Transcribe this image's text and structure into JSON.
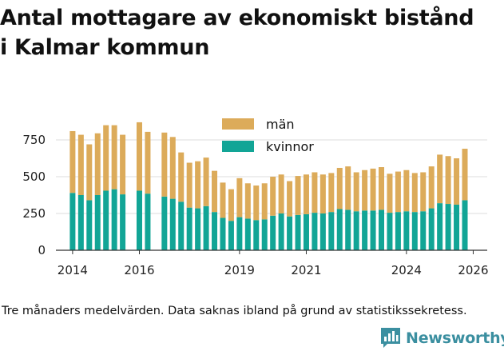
{
  "title_lines": [
    "Antal mottagare av ekonomiskt bistånd",
    "i Kalmar kommun"
  ],
  "footnote": "Tre månaders medelvärden. Data saknas ibland på grund av statistikssekretess.",
  "brand": {
    "name": "Newsworthy",
    "icon": "newsworthy-logo-icon",
    "color": "#3b8fa0"
  },
  "colors": {
    "man": "#dcab5a",
    "kvinnor": "#12a596",
    "grid": "#dddddd",
    "axis": "#333333"
  },
  "chart_data": {
    "type": "bar",
    "stacked": true,
    "title": "Antal mottagare av ekonomiskt bistånd i Kalmar kommun",
    "xlabel": "",
    "ylabel": "",
    "ylim": [
      0,
      850
    ],
    "yticks": [
      0,
      250,
      500,
      750
    ],
    "xtick_labels": [
      "2014",
      "2016",
      "2019",
      "2021",
      "2024",
      "2026"
    ],
    "xtick_positions": [
      2014.25,
      2016.25,
      2019.25,
      2021.25,
      2024.25,
      2026.25
    ],
    "x_range": [
      2013.75,
      2026.67
    ],
    "legend": {
      "position": "top-center",
      "entries": [
        "män",
        "kvinnor"
      ]
    },
    "x": [
      2014.25,
      2014.5,
      2014.75,
      2015.0,
      2015.25,
      2015.5,
      2015.75,
      2016.0,
      2016.25,
      2016.5,
      2016.75,
      2017.0,
      2017.25,
      2017.5,
      2017.75,
      2018.0,
      2018.25,
      2018.5,
      2018.75,
      2019.0,
      2019.25,
      2019.5,
      2019.75,
      2020.0,
      2020.25,
      2020.5,
      2020.75,
      2021.0,
      2021.25,
      2021.5,
      2021.75,
      2022.0,
      2022.25,
      2022.5,
      2022.75,
      2023.0,
      2023.25,
      2023.5,
      2023.75,
      2024.0,
      2024.25,
      2024.5,
      2024.75,
      2025.0,
      2025.25,
      2025.5,
      2025.75,
      2026.0,
      2026.25
    ],
    "series": [
      {
        "name": "kvinnor",
        "values": [
          390,
          375,
          340,
          375,
          405,
          415,
          380,
          null,
          405,
          385,
          null,
          365,
          350,
          330,
          290,
          285,
          300,
          260,
          220,
          200,
          225,
          215,
          205,
          210,
          235,
          250,
          230,
          240,
          245,
          255,
          250,
          260,
          280,
          275,
          265,
          270,
          270,
          275,
          255,
          260,
          265,
          260,
          265,
          285,
          320,
          315,
          310,
          340,
          null
        ]
      },
      {
        "name": "män",
        "values": [
          420,
          410,
          380,
          420,
          445,
          435,
          405,
          null,
          465,
          420,
          null,
          435,
          420,
          335,
          305,
          320,
          330,
          280,
          240,
          215,
          265,
          240,
          235,
          245,
          265,
          265,
          240,
          265,
          270,
          275,
          265,
          265,
          280,
          295,
          265,
          275,
          285,
          290,
          265,
          275,
          280,
          265,
          265,
          285,
          330,
          325,
          315,
          350,
          null
        ]
      }
    ]
  }
}
